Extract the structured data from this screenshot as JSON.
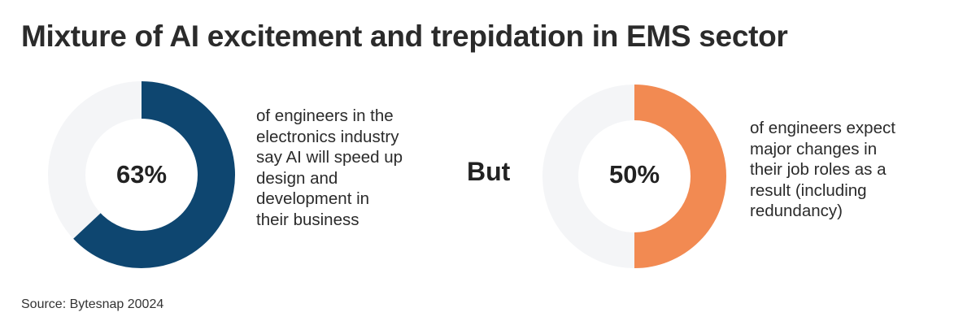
{
  "title": "Mixture of AI excitement and trepidation in EMS sector",
  "connector": "But",
  "source": "Source: Bytesnap 20024",
  "colors": {
    "track": "#f4f5f7",
    "first_fill": "#0e4670",
    "second_fill": "#f28a52"
  },
  "chart_data": [
    {
      "type": "pie",
      "value": 63,
      "label": "63%",
      "description": "of engineers in the electronics industry say AI will speed up design and development in their business",
      "description_lines": [
        "of engineers in the",
        "electronics industry",
        "say AI will speed up",
        "design and",
        "development in",
        "their business"
      ]
    },
    {
      "type": "pie",
      "value": 50,
      "label": "50%",
      "description": "of engineers expect major changes in their job roles as a result (including redundancy)",
      "description_lines": [
        "of engineers expect",
        "major changes in",
        "their job roles as a",
        "result (including",
        "redundancy)"
      ]
    }
  ]
}
